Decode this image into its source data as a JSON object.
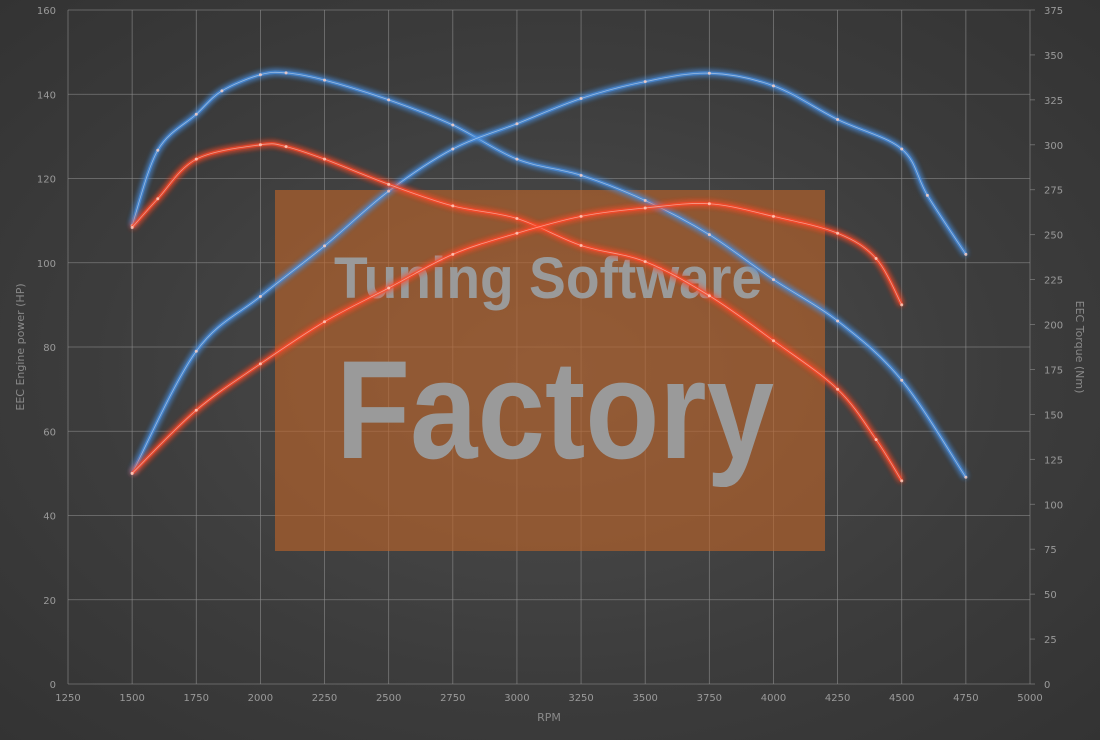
{
  "chart_data": {
    "type": "line",
    "xlabel": "RPM",
    "ylabel_left": "EEC Engine power (HP)",
    "ylabel_right": "EEC Torque (Nm)",
    "xlim": [
      1250,
      5000
    ],
    "ylim_left": [
      0,
      160
    ],
    "ylim_right": [
      0,
      375
    ],
    "x_ticks": [
      1250,
      1500,
      1750,
      2000,
      2250,
      2500,
      2750,
      3000,
      3250,
      3500,
      3750,
      4000,
      4250,
      4500,
      4750,
      5000
    ],
    "y_left_ticks": [
      0,
      20,
      40,
      60,
      80,
      100,
      120,
      140,
      160
    ],
    "y_right_ticks": [
      0,
      25,
      50,
      75,
      100,
      125,
      150,
      175,
      200,
      225,
      250,
      275,
      300,
      325,
      350,
      375
    ],
    "grid": true,
    "watermark": {
      "line1": "Tuning Software",
      "line2": "Factory"
    },
    "series": [
      {
        "axis": "right",
        "color": "#4a90e2",
        "x": [
          1500,
          1600,
          1750,
          1850,
          2000,
          2100,
          2250,
          2500,
          2750,
          3000,
          3250,
          3500,
          3750,
          4000,
          4250,
          4500,
          4750
        ],
        "y": [
          255,
          297,
          317,
          330,
          339,
          340,
          336,
          325,
          311,
          292,
          283,
          269,
          250,
          225,
          202,
          169,
          115
        ]
      },
      {
        "axis": "left",
        "color": "#4a90e2",
        "x": [
          1500,
          1750,
          2000,
          2250,
          2500,
          2750,
          3000,
          3250,
          3500,
          3750,
          4000,
          4250,
          4500,
          4600,
          4750
        ],
        "y": [
          50,
          79,
          92,
          104,
          117,
          127,
          133,
          139,
          143,
          145,
          142,
          134,
          127,
          116,
          102
        ]
      },
      {
        "axis": "right",
        "color": "#ff4a2a",
        "x": [
          1500,
          1600,
          1750,
          2000,
          2100,
          2250,
          2500,
          2750,
          3000,
          3250,
          3500,
          3750,
          4000,
          4250,
          4400,
          4500
        ],
        "y": [
          254,
          270,
          292,
          300,
          299,
          292,
          278,
          266,
          259,
          244,
          235,
          216,
          191,
          164,
          136,
          113
        ]
      },
      {
        "axis": "left",
        "color": "#ff4a2a",
        "x": [
          1500,
          1750,
          2000,
          2250,
          2500,
          2750,
          3000,
          3250,
          3500,
          3750,
          4000,
          4250,
          4400,
          4500
        ],
        "y": [
          50,
          65,
          76,
          86,
          94,
          102,
          107,
          111,
          113,
          114,
          111,
          107,
          101,
          90
        ]
      }
    ]
  }
}
